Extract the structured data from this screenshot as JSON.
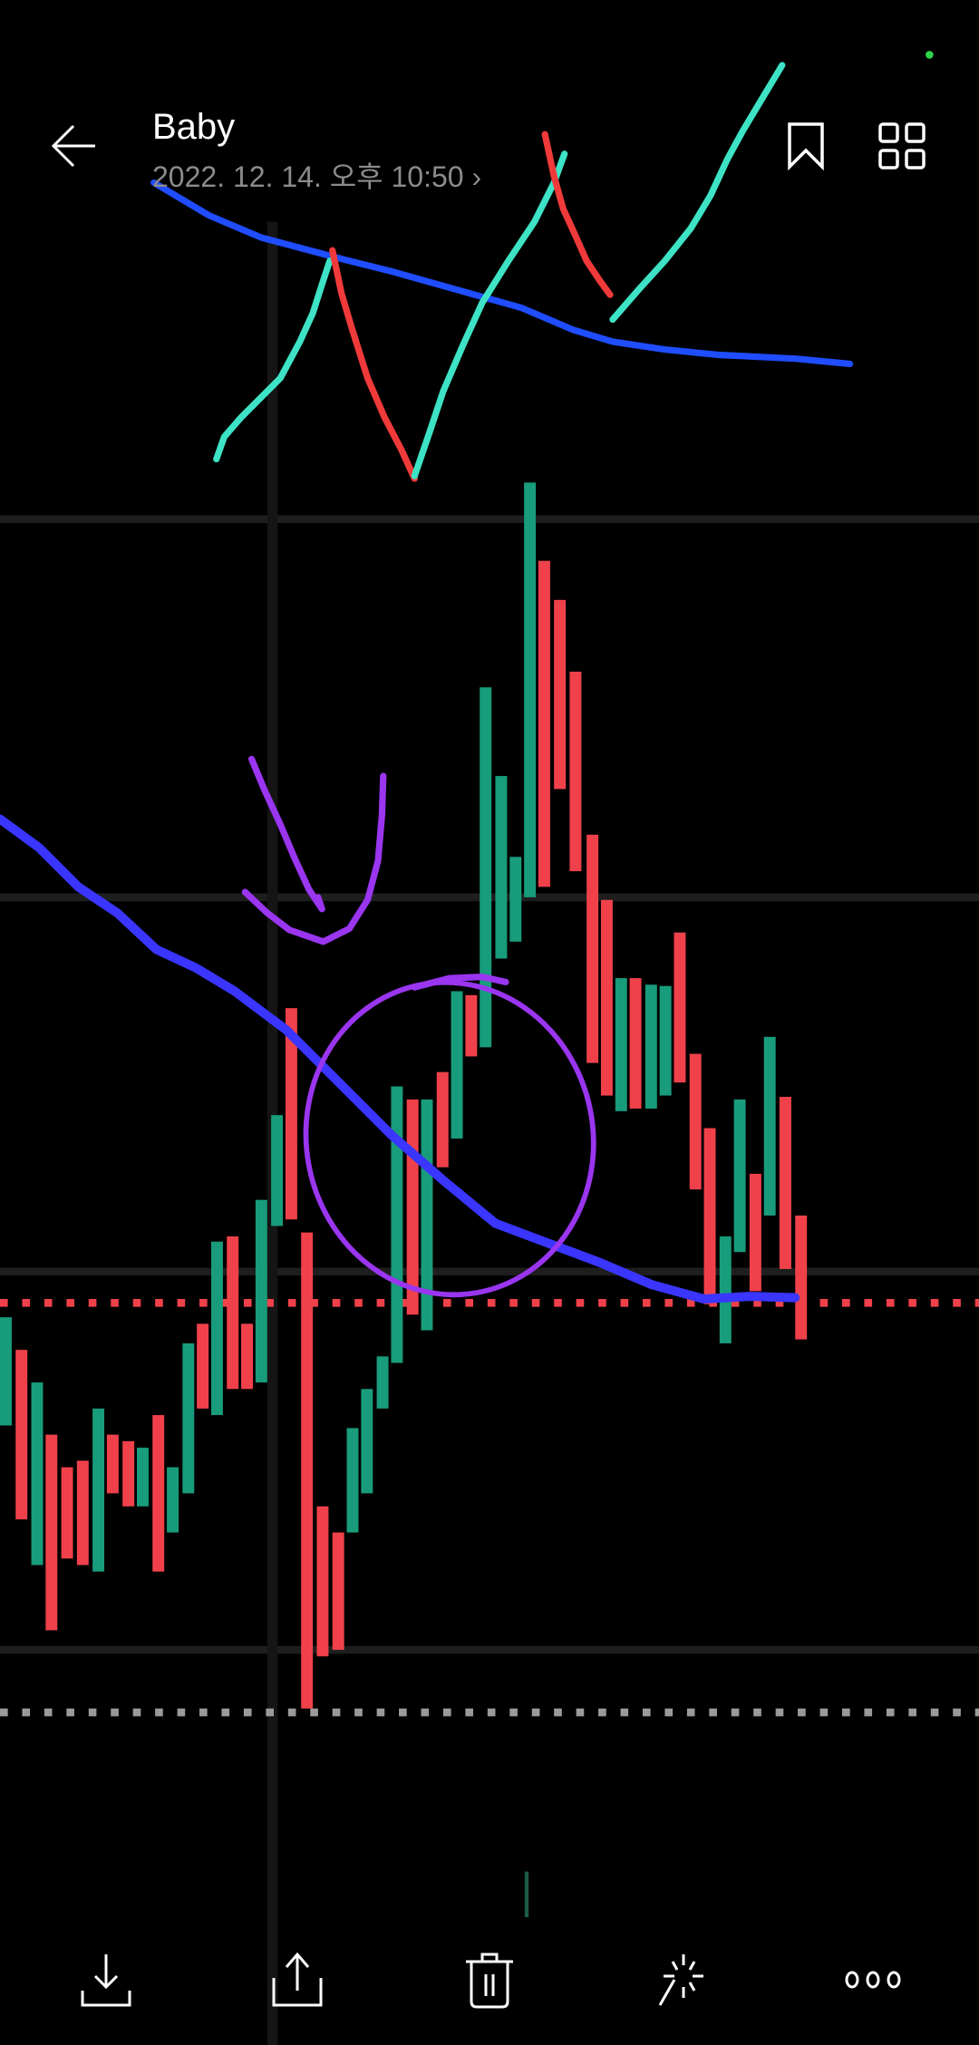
{
  "header": {
    "title": "Baby",
    "date": "2022. 12. 14. 오후 10:50",
    "date_chevron": "›",
    "back_icon": "arrow-left-icon",
    "bookmark_icon": "bookmark-icon",
    "grid_icon": "grid-view-icon"
  },
  "bottom_bar": {
    "items": [
      {
        "icon": "download-icon"
      },
      {
        "icon": "share-icon"
      },
      {
        "icon": "trash-icon"
      },
      {
        "icon": "magic-edit-icon"
      },
      {
        "icon": "more-options-icon"
      }
    ]
  },
  "colors": {
    "background": "#000000",
    "candle_up": "#189c7c",
    "candle_down": "#f0414b",
    "moving_average": "#3a35ff",
    "annotation_teal": "#3de3c4",
    "annotation_red": "#f03a3a",
    "annotation_blue": "#1f4dff",
    "annotation_purple": "#9a35f0"
  }
}
